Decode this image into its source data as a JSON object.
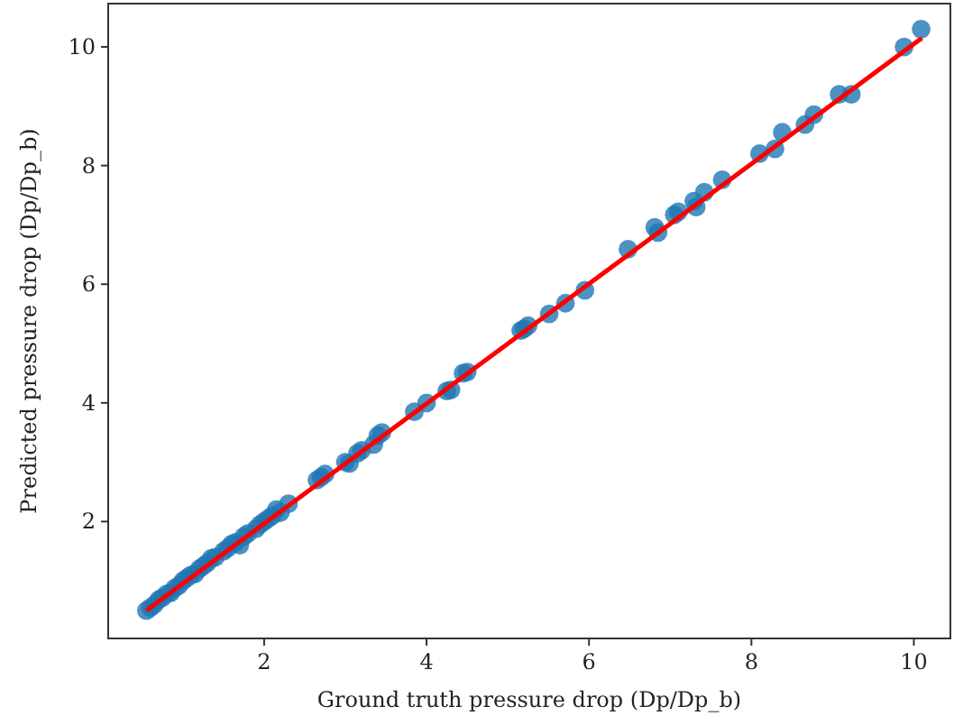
{
  "chart_data": {
    "type": "scatter",
    "xlabel": "Ground truth pressure drop (Dp/Dp_b)",
    "ylabel": "Predicted pressure drop (Dp/Dp_b)",
    "xlim": [
      0.08,
      10.45
    ],
    "ylim": [
      0.03,
      10.73
    ],
    "xticks": [
      2,
      4,
      6,
      8,
      10
    ],
    "yticks": [
      2,
      4,
      6,
      8,
      10
    ],
    "grid": false,
    "series": [
      {
        "color": "#1f77b4",
        "marker": "circle",
        "x": [
          0.55,
          0.6,
          0.65,
          0.7,
          0.75,
          0.8,
          0.85,
          0.9,
          0.95,
          1.0,
          1.05,
          1.1,
          1.15,
          1.2,
          1.25,
          1.3,
          1.35,
          1.4,
          1.5,
          1.55,
          1.6,
          1.65,
          1.7,
          1.75,
          1.8,
          1.9,
          1.95,
          2.0,
          2.05,
          2.1,
          2.15,
          2.2,
          2.3,
          2.65,
          2.7,
          2.75,
          3.0,
          3.05,
          3.15,
          3.2,
          3.35,
          3.4,
          3.45,
          3.85,
          4.0,
          4.25,
          4.3,
          4.45,
          4.5,
          5.16,
          5.2,
          5.25,
          5.51,
          5.71,
          5.95,
          6.48,
          6.81,
          6.85,
          7.05,
          7.1,
          7.29,
          7.32,
          7.42,
          7.64,
          8.1,
          8.29,
          8.38,
          8.66,
          8.77,
          9.08,
          9.23,
          9.88,
          10.09
        ],
        "values": [
          0.5,
          0.55,
          0.6,
          0.68,
          0.72,
          0.78,
          0.8,
          0.88,
          0.92,
          1.0,
          1.05,
          1.1,
          1.12,
          1.2,
          1.25,
          1.3,
          1.38,
          1.4,
          1.5,
          1.55,
          1.62,
          1.65,
          1.6,
          1.75,
          1.8,
          1.88,
          1.95,
          2.0,
          2.05,
          2.1,
          2.2,
          2.15,
          2.3,
          2.7,
          2.75,
          2.8,
          3.0,
          2.98,
          3.15,
          3.2,
          3.3,
          3.45,
          3.5,
          3.85,
          4.0,
          4.2,
          4.22,
          4.5,
          4.52,
          5.22,
          5.25,
          5.3,
          5.5,
          5.68,
          5.9,
          6.59,
          6.96,
          6.87,
          7.17,
          7.22,
          7.4,
          7.3,
          7.55,
          7.76,
          8.2,
          8.28,
          8.56,
          8.69,
          8.86,
          9.2,
          9.2,
          10.0,
          10.3
        ]
      },
      {
        "type": "line",
        "marker": "none",
        "color": "#ff0000",
        "line_style": "solid",
        "x": [
          0.55,
          10.1
        ],
        "values": [
          0.5,
          10.15
        ]
      }
    ]
  }
}
